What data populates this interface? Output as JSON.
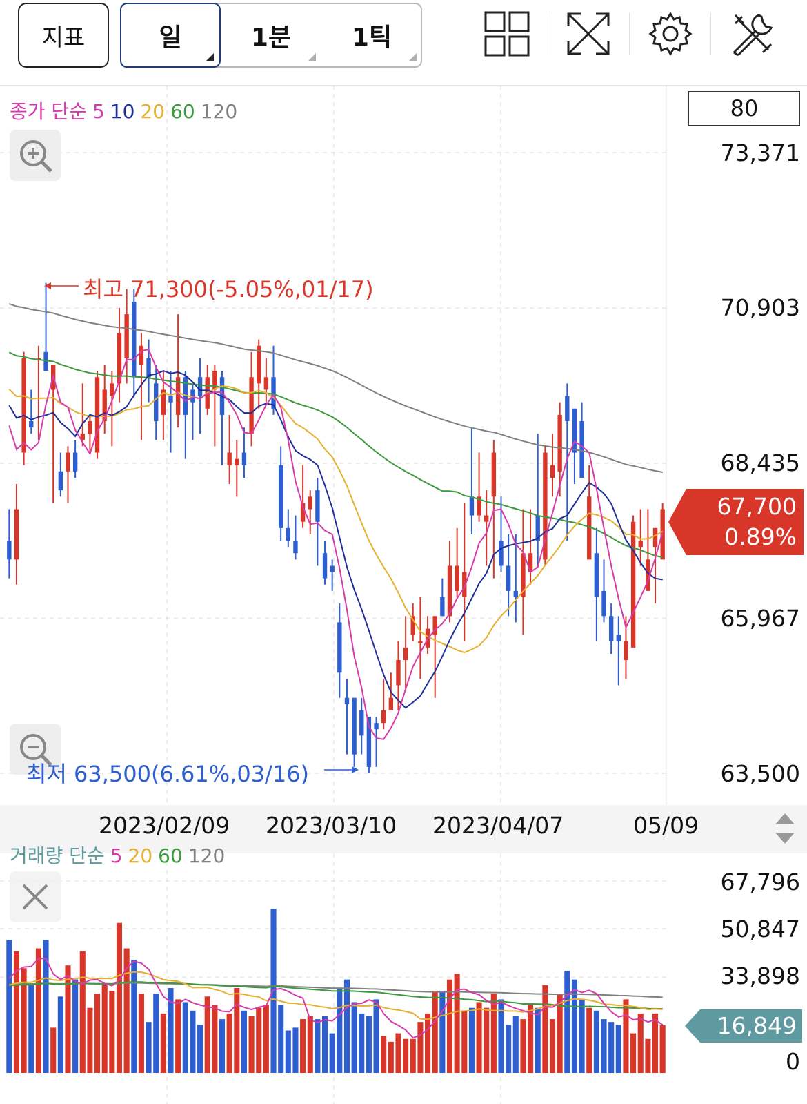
{
  "toolbar": {
    "indicator_label": "지표",
    "periods": [
      {
        "label": "일",
        "active": true
      },
      {
        "label": "1분",
        "active": false
      },
      {
        "label": "1틱",
        "active": false
      }
    ],
    "icons": [
      "layout-grid-icon",
      "expand-icon",
      "gear-icon",
      "tools-icon"
    ]
  },
  "price_panel": {
    "legend": {
      "prefix": "종가 단순",
      "periods": [
        "5",
        "10",
        "20",
        "60",
        "120"
      ]
    },
    "box_value": "80",
    "y_labels": [
      "73,371",
      "70,903",
      "68,435",
      "65,967",
      "63,500"
    ],
    "high_annotation": "최고 71,300(-5.05%,01/17)",
    "low_annotation": "최저 63,500(6.61%,03/16)",
    "current_price": "67,700",
    "current_change": "0.89%"
  },
  "x_labels": [
    "2023/02/09",
    "2023/03/10",
    "2023/04/07",
    "05/09"
  ],
  "volume_panel": {
    "legend": {
      "prefix": "거래량 단순",
      "periods": [
        "5",
        "20",
        "60",
        "120"
      ]
    },
    "y_labels": [
      "67,796",
      "50,847",
      "33,898",
      "16,849",
      "0"
    ],
    "current_volume": "16,849"
  },
  "colors": {
    "up": "#d9362a",
    "down": "#2e5fd0",
    "ma5": "#d63bab",
    "ma10": "#1f2f9a",
    "ma20": "#e6b030",
    "ma60": "#3c9a3c",
    "ma120": "#808080",
    "vol_label": "#5e9aa0"
  },
  "chart_data": {
    "type": "candlestick",
    "price_ylim": [
      63500,
      73371
    ],
    "volume_ylim": [
      0,
      67796
    ],
    "candles": [
      [
        67200,
        66900,
        67700,
        66600
      ],
      [
        66900,
        67700,
        68100,
        66500
      ],
      [
        68600,
        70100,
        70200,
        68400
      ],
      [
        69100,
        69000,
        69600,
        68900
      ],
      [
        70100,
        70100,
        70300,
        68800
      ],
      [
        70200,
        69900,
        71300,
        69900
      ],
      [
        69600,
        70000,
        70000,
        67800
      ],
      [
        68300,
        68000,
        68600,
        67900
      ],
      [
        68300,
        68600,
        68700,
        67800
      ],
      [
        68600,
        68300,
        68800,
        68200
      ],
      [
        68800,
        68900,
        69700,
        68700
      ],
      [
        68900,
        69100,
        69200,
        68600
      ],
      [
        68600,
        69800,
        69900,
        68500
      ],
      [
        69100,
        69600,
        70000,
        68900
      ],
      [
        69500,
        69700,
        69900,
        68700
      ],
      [
        69700,
        70500,
        70900,
        69400
      ],
      [
        70100,
        70800,
        71200,
        69700
      ],
      [
        71000,
        69800,
        71200,
        69500
      ],
      [
        70000,
        70300,
        70500,
        68800
      ],
      [
        70100,
        69800,
        70400,
        69400
      ],
      [
        69700,
        69100,
        70000,
        68800
      ],
      [
        69200,
        69600,
        69900,
        68800
      ],
      [
        69500,
        69400,
        69900,
        68600
      ],
      [
        69200,
        69800,
        70800,
        69000
      ],
      [
        69800,
        69200,
        69900,
        68500
      ],
      [
        69600,
        69400,
        69700,
        68800
      ],
      [
        69800,
        69500,
        70100,
        68900
      ],
      [
        69300,
        69800,
        70000,
        69200
      ],
      [
        69600,
        69900,
        70000,
        68700
      ],
      [
        69800,
        69200,
        69900,
        68400
      ],
      [
        68400,
        68600,
        69200,
        68100
      ],
      [
        68400,
        68500,
        68800,
        67900
      ],
      [
        68600,
        68400,
        69000,
        68200
      ],
      [
        68900,
        69800,
        70200,
        68700
      ],
      [
        69700,
        70300,
        70400,
        69300
      ],
      [
        69600,
        69800,
        70100,
        69400
      ],
      [
        69800,
        69300,
        70300,
        69200
      ],
      [
        68400,
        67400,
        68700,
        67200
      ],
      [
        67400,
        67200,
        67700,
        67100
      ],
      [
        67200,
        67000,
        67600,
        66900
      ],
      [
        67500,
        67800,
        68400,
        67400
      ],
      [
        67700,
        67900,
        68000,
        67300
      ],
      [
        68000,
        67500,
        68200,
        66800
      ],
      [
        67000,
        66600,
        67200,
        66500
      ],
      [
        66800,
        66700,
        66900,
        66400
      ],
      [
        65900,
        65100,
        66200,
        64700
      ],
      [
        64700,
        64600,
        65000,
        63800
      ],
      [
        64700,
        63800,
        64700,
        63600
      ],
      [
        64500,
        64100,
        64700,
        63800
      ],
      [
        64400,
        63600,
        64400,
        63500
      ],
      [
        64300,
        64200,
        64400,
        63600
      ],
      [
        64300,
        64500,
        65000,
        64200
      ],
      [
        64500,
        64700,
        65100,
        64600
      ],
      [
        64900,
        65300,
        65600,
        64500
      ],
      [
        65300,
        65500,
        66000,
        64800
      ],
      [
        65700,
        66000,
        66200,
        65600
      ],
      [
        65600,
        65600,
        66300,
        65000
      ],
      [
        65500,
        65800,
        66000,
        65400
      ],
      [
        65700,
        66000,
        65900,
        64700
      ],
      [
        66300,
        66000,
        66600,
        66000
      ],
      [
        66000,
        66800,
        67200,
        65900
      ],
      [
        66400,
        66800,
        67400,
        66300
      ],
      [
        66300,
        66700,
        67800,
        65600
      ],
      [
        67900,
        67600,
        69000,
        67300
      ],
      [
        67600,
        67900,
        68600,
        67500
      ],
      [
        67500,
        67600,
        68000,
        66800
      ],
      [
        67900,
        68600,
        68800,
        66600
      ],
      [
        67200,
        66800,
        67900,
        66700
      ],
      [
        66800,
        66400,
        67300,
        66000
      ],
      [
        66400,
        66300,
        67300,
        65900
      ],
      [
        66300,
        67000,
        67700,
        65700
      ],
      [
        66700,
        67000,
        67700,
        66500
      ],
      [
        67600,
        67200,
        68900,
        66800
      ],
      [
        66900,
        68600,
        68700,
        66800
      ],
      [
        68200,
        68400,
        68900,
        67900
      ],
      [
        68300,
        69200,
        69400,
        67900
      ],
      [
        69500,
        69100,
        69700,
        67200
      ],
      [
        69300,
        68600,
        69200,
        68100
      ],
      [
        69100,
        68200,
        69400,
        68300
      ],
      [
        66900,
        67900,
        68400,
        66900
      ],
      [
        67000,
        66300,
        67400,
        65600
      ],
      [
        66400,
        66000,
        66900,
        65900
      ],
      [
        66000,
        65600,
        66200,
        65400
      ],
      [
        65700,
        65600,
        66000,
        64900
      ],
      [
        65300,
        65600,
        66000,
        65000
      ],
      [
        65500,
        67500,
        67600,
        65600
      ],
      [
        67100,
        67200,
        67700,
        66800
      ],
      [
        66400,
        66900,
        67700,
        66600
      ],
      [
        67100,
        67400,
        67400,
        66200
      ],
      [
        66900,
        67700,
        67800,
        67000
      ]
    ],
    "volumes": [
      47000,
      43000,
      37000,
      31000,
      44000,
      47000,
      16000,
      27000,
      38000,
      33000,
      43000,
      23000,
      28000,
      31000,
      29000,
      53000,
      44000,
      40000,
      28000,
      18000,
      28000,
      21000,
      30000,
      26000,
      25000,
      22000,
      17000,
      27000,
      24000,
      19000,
      21000,
      30000,
      22000,
      20000,
      23000,
      24000,
      58000,
      24000,
      15000,
      16000,
      19000,
      20000,
      19000,
      20000,
      14000,
      30000,
      33000,
      25000,
      21000,
      20000,
      26000,
      13000,
      11000,
      14000,
      12000,
      12000,
      18000,
      21000,
      29000,
      29000,
      33000,
      35000,
      22000,
      23000,
      25000,
      23000,
      28000,
      26000,
      17000,
      20000,
      19000,
      24000,
      23000,
      31000,
      19000,
      28000,
      36000,
      33000,
      26000,
      23000,
      22000,
      19000,
      18000,
      17000,
      26000,
      14000,
      21000,
      12000,
      21000,
      16849
    ]
  }
}
